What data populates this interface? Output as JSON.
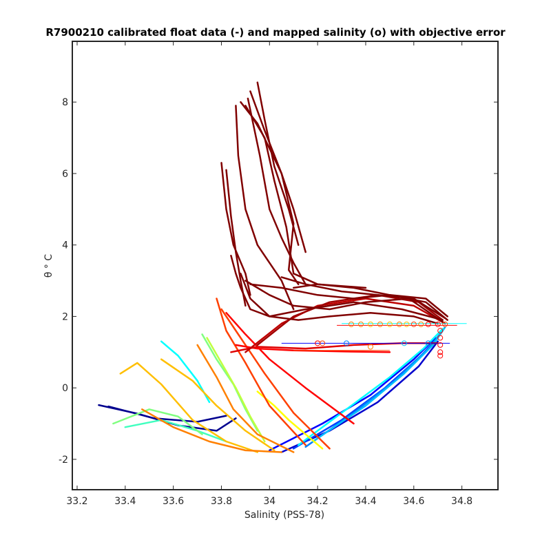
{
  "chart_data": {
    "type": "line",
    "title": "R7900210 calibrated float data (-) and mapped salinity (o) with objective error",
    "xlabel": "Salinity (PSS-78)",
    "ylabel": "θ ° C",
    "xlim": [
      33.18,
      34.95
    ],
    "ylim": [
      -2.85,
      9.7
    ],
    "x_ticks": [
      {
        "value": 33.2,
        "label": "33.2"
      },
      {
        "value": 33.4,
        "label": "33.4"
      },
      {
        "value": 33.6,
        "label": "33.6"
      },
      {
        "value": 33.8,
        "label": "33.8"
      },
      {
        "value": 34.0,
        "label": "34"
      },
      {
        "value": 34.2,
        "label": "34.2"
      },
      {
        "value": 34.4,
        "label": "34.4"
      },
      {
        "value": 34.6,
        "label": "34.6"
      },
      {
        "value": 34.8,
        "label": "34.8"
      }
    ],
    "y_ticks": [
      {
        "value": -2,
        "label": "-2"
      },
      {
        "value": 0,
        "label": "0"
      },
      {
        "value": 2,
        "label": "2"
      },
      {
        "value": 4,
        "label": "4"
      },
      {
        "value": 6,
        "label": "6"
      },
      {
        "value": 8,
        "label": "8"
      }
    ],
    "grid": false,
    "legend": "none",
    "colormap": [
      "#00008f",
      "#0000ff",
      "#0080ff",
      "#00ffff",
      "#80ff80",
      "#ffff00",
      "#ff8000",
      "#ff0000",
      "#800000"
    ],
    "series": [
      {
        "color": "#00008f",
        "x": [
          33.29,
          33.45,
          33.62,
          33.78,
          33.86
        ],
        "y": [
          -0.48,
          -0.72,
          -1.05,
          -1.2,
          -0.85
        ]
      },
      {
        "color": "#00008f",
        "x": [
          33.33,
          33.52,
          33.7,
          33.82
        ],
        "y": [
          -0.52,
          -0.85,
          -0.95,
          -0.78
        ]
      },
      {
        "color": "#0000cd",
        "x": [
          34.05,
          34.25,
          34.45,
          34.62,
          34.7
        ],
        "y": [
          -1.8,
          -1.2,
          -0.4,
          0.6,
          1.3
        ]
      },
      {
        "color": "#0000ff",
        "x": [
          34.0,
          34.22,
          34.42,
          34.6,
          34.69
        ],
        "y": [
          -1.75,
          -1.0,
          -0.2,
          0.8,
          1.4
        ]
      },
      {
        "color": "#0040ff",
        "x": [
          34.1,
          34.3,
          34.48,
          34.63,
          34.71
        ],
        "y": [
          -1.7,
          -0.9,
          0.0,
          0.9,
          1.5
        ]
      },
      {
        "color": "#0080ff",
        "x": [
          34.15,
          34.35,
          34.52,
          34.66,
          34.72
        ],
        "y": [
          -1.65,
          -0.7,
          0.2,
          1.1,
          1.6
        ]
      },
      {
        "color": "#00bfff",
        "x": [
          34.18,
          34.4,
          34.56,
          34.68,
          34.73
        ],
        "y": [
          -1.5,
          -0.5,
          0.4,
          1.2,
          1.7
        ]
      },
      {
        "color": "#00ffff",
        "x": [
          34.12,
          34.32,
          34.5,
          34.64,
          34.72
        ],
        "y": [
          -1.6,
          -0.6,
          0.3,
          1.1,
          1.65
        ]
      },
      {
        "color": "#00ffff",
        "x": [
          33.55,
          33.62,
          33.7,
          33.75
        ],
        "y": [
          1.3,
          0.9,
          0.2,
          -0.4
        ]
      },
      {
        "color": "#40ffbf",
        "x": [
          33.4,
          33.55,
          33.7,
          33.82
        ],
        "y": [
          -1.1,
          -0.9,
          -1.2,
          -1.5
        ]
      },
      {
        "color": "#80ff80",
        "x": [
          33.72,
          33.78,
          33.85,
          33.9,
          33.95
        ],
        "y": [
          1.5,
          0.8,
          0.1,
          -0.6,
          -1.2
        ]
      },
      {
        "color": "#80ff80",
        "x": [
          33.35,
          33.5,
          33.62,
          33.72
        ],
        "y": [
          -1.0,
          -0.6,
          -0.8,
          -1.3
        ]
      },
      {
        "color": "#bfff40",
        "x": [
          33.74,
          33.8,
          33.86,
          33.92,
          33.98
        ],
        "y": [
          1.4,
          0.7,
          0.0,
          -0.8,
          -1.5
        ]
      },
      {
        "color": "#ffff00",
        "x": [
          33.95,
          34.02,
          34.08,
          34.15,
          34.22
        ],
        "y": [
          -0.1,
          -0.5,
          -0.9,
          -1.3,
          -1.7
        ]
      },
      {
        "color": "#ffbf00",
        "x": [
          33.38,
          33.45,
          33.55,
          33.68,
          33.82,
          33.95
        ],
        "y": [
          0.4,
          0.7,
          0.1,
          -0.9,
          -1.5,
          -1.8
        ]
      },
      {
        "color": "#ffbf00",
        "x": [
          33.55,
          33.68,
          33.78,
          33.9,
          34.02
        ],
        "y": [
          0.8,
          0.2,
          -0.5,
          -1.2,
          -1.75
        ]
      },
      {
        "color": "#ff8000",
        "x": [
          33.47,
          33.6,
          33.75,
          33.9,
          34.05
        ],
        "y": [
          -0.6,
          -1.1,
          -1.5,
          -1.75,
          -1.8
        ]
      },
      {
        "color": "#ff8000",
        "x": [
          33.7,
          33.78,
          33.85,
          33.95,
          34.1
        ],
        "y": [
          1.2,
          0.3,
          -0.6,
          -1.3,
          -1.8
        ]
      },
      {
        "color": "#ff4000",
        "x": [
          33.78,
          33.82,
          33.9,
          34.0,
          34.15
        ],
        "y": [
          2.5,
          1.6,
          0.7,
          -0.5,
          -1.6
        ]
      },
      {
        "color": "#ff4000",
        "x": [
          33.8,
          33.88,
          33.98,
          34.1,
          34.25
        ],
        "y": [
          2.2,
          1.4,
          0.4,
          -0.7,
          -1.7
        ]
      },
      {
        "color": "#ff0000",
        "x": [
          33.82,
          33.9,
          34.0,
          34.15,
          34.35
        ],
        "y": [
          2.1,
          1.5,
          0.8,
          0.0,
          -1.0
        ]
      },
      {
        "color": "#ff0000",
        "x": [
          33.86,
          33.95,
          34.1,
          34.3,
          34.5
        ],
        "y": [
          1.2,
          1.1,
          1.05,
          1.02,
          1.0
        ]
      },
      {
        "color": "#e00000",
        "x": [
          33.84,
          33.95,
          34.15,
          34.35,
          34.55,
          34.7
        ],
        "y": [
          1.0,
          1.15,
          1.1,
          1.2,
          1.25,
          1.25
        ]
      },
      {
        "color": "#bf0000",
        "x": [
          33.9,
          34.05,
          34.2,
          34.4,
          34.6,
          34.73
        ],
        "y": [
          1.0,
          1.8,
          2.3,
          2.5,
          2.3,
          1.8
        ]
      },
      {
        "color": "#a00000",
        "x": [
          33.95,
          34.1,
          34.25,
          34.45,
          34.62,
          34.72
        ],
        "y": [
          1.2,
          2.0,
          2.4,
          2.6,
          2.4,
          1.9
        ]
      },
      {
        "color": "#800000",
        "x": [
          33.86,
          33.87,
          33.9,
          33.95,
          34.0,
          34.05,
          34.1
        ],
        "y": [
          7.9,
          6.5,
          5.0,
          4.0,
          3.5,
          3.0,
          2.2
        ]
      },
      {
        "color": "#800000",
        "x": [
          33.88,
          33.95,
          34.05,
          34.1,
          34.08,
          34.12
        ],
        "y": [
          8.0,
          7.4,
          6.0,
          4.6,
          3.3,
          2.9
        ]
      },
      {
        "color": "#800000",
        "x": [
          33.9,
          33.98,
          34.02,
          34.07,
          34.1,
          34.2,
          34.4
        ],
        "y": [
          7.9,
          7.0,
          5.8,
          4.5,
          3.2,
          2.9,
          2.8
        ]
      },
      {
        "color": "#800000",
        "x": [
          33.91,
          33.96,
          34.0,
          34.05,
          34.1,
          34.15
        ],
        "y": [
          8.1,
          6.5,
          5.0,
          4.2,
          3.5,
          2.9
        ]
      },
      {
        "color": "#800000",
        "x": [
          33.92,
          33.98,
          34.05,
          34.1,
          34.15
        ],
        "y": [
          8.3,
          7.2,
          6.0,
          5.0,
          3.8
        ]
      },
      {
        "color": "#800000",
        "x": [
          33.95,
          33.98,
          34.02,
          34.08,
          34.12
        ],
        "y": [
          8.55,
          7.5,
          6.2,
          5.0,
          4.0
        ]
      },
      {
        "color": "#800000",
        "x": [
          33.8,
          33.82,
          33.85,
          33.9,
          33.92
        ],
        "y": [
          6.3,
          5.0,
          4.0,
          3.2,
          2.6
        ]
      },
      {
        "color": "#800000",
        "x": [
          33.82,
          33.84,
          33.86,
          33.88,
          33.9
        ],
        "y": [
          6.1,
          4.8,
          3.8,
          3.0,
          2.3
        ]
      },
      {
        "color": "#800000",
        "x": [
          33.84,
          33.86,
          33.88,
          33.92,
          34.0,
          34.15,
          34.35,
          34.55,
          34.72
        ],
        "y": [
          3.7,
          3.2,
          2.8,
          2.2,
          2.0,
          2.2,
          2.4,
          2.2,
          1.9
        ]
      },
      {
        "color": "#800000",
        "x": [
          33.88,
          33.92,
          34.0,
          34.12,
          34.25,
          34.42,
          34.6,
          34.7
        ],
        "y": [
          3.2,
          2.5,
          2.0,
          1.9,
          2.0,
          2.1,
          2.0,
          1.8
        ]
      },
      {
        "color": "#800000",
        "x": [
          33.9,
          34.0,
          34.1,
          34.25,
          34.4,
          34.58,
          34.72
        ],
        "y": [
          3.0,
          2.6,
          2.3,
          2.2,
          2.4,
          2.5,
          1.85
        ]
      },
      {
        "color": "#800000",
        "x": [
          33.92,
          34.05,
          34.2,
          34.35,
          34.5,
          34.65,
          34.74
        ],
        "y": [
          2.9,
          2.8,
          2.6,
          2.5,
          2.6,
          2.4,
          1.9
        ]
      },
      {
        "color": "#800000",
        "x": [
          34.05,
          34.15,
          34.3,
          34.45,
          34.6,
          34.73
        ],
        "y": [
          3.1,
          2.9,
          2.7,
          2.6,
          2.5,
          1.95
        ]
      },
      {
        "color": "#800000",
        "x": [
          34.1,
          34.2,
          34.35,
          34.5,
          34.65,
          34.74
        ],
        "y": [
          2.8,
          2.9,
          2.8,
          2.6,
          2.5,
          2.0
        ]
      }
    ],
    "mapped_points": [
      {
        "color": "#ff8000",
        "x": 34.34,
        "y": 1.78
      },
      {
        "color": "#ff8000",
        "x": 34.38,
        "y": 1.78
      },
      {
        "color": "#ffbf00",
        "x": 34.42,
        "y": 1.78
      },
      {
        "color": "#ff8000",
        "x": 34.46,
        "y": 1.78
      },
      {
        "color": "#ffbf00",
        "x": 34.5,
        "y": 1.78
      },
      {
        "color": "#ff8000",
        "x": 34.54,
        "y": 1.78
      },
      {
        "color": "#ffbf00",
        "x": 34.57,
        "y": 1.78
      },
      {
        "color": "#ff4000",
        "x": 34.6,
        "y": 1.78
      },
      {
        "color": "#ff8000",
        "x": 34.63,
        "y": 1.78
      },
      {
        "color": "#ff0000",
        "x": 34.66,
        "y": 1.78
      },
      {
        "color": "#ff0000",
        "x": 34.7,
        "y": 1.78
      },
      {
        "color": "#ff4000",
        "x": 34.73,
        "y": 1.78
      },
      {
        "color": "#ff0000",
        "x": 34.2,
        "y": 1.25
      },
      {
        "color": "#ff4000",
        "x": 34.22,
        "y": 1.25
      },
      {
        "color": "#0080ff",
        "x": 34.32,
        "y": 1.25
      },
      {
        "color": "#00bfff",
        "x": 34.56,
        "y": 1.25
      },
      {
        "color": "#0080ff",
        "x": 34.66,
        "y": 1.25
      },
      {
        "color": "#ff8000",
        "x": 34.42,
        "y": 1.15
      },
      {
        "color": "#ff0000",
        "x": 34.71,
        "y": 1.6
      },
      {
        "color": "#ff0000",
        "x": 34.71,
        "y": 1.4
      },
      {
        "color": "#ff0000",
        "x": 34.71,
        "y": 1.2
      },
      {
        "color": "#ff0000",
        "x": 34.71,
        "y": 1.0
      },
      {
        "color": "#ff0000",
        "x": 34.71,
        "y": 0.9
      }
    ],
    "error_bars": [
      {
        "color": "#00ffff",
        "x1": 34.3,
        "x2": 34.82,
        "y": 1.8
      },
      {
        "color": "#ff0000",
        "x1": 34.28,
        "x2": 34.78,
        "y": 1.75
      },
      {
        "color": "#0000ff",
        "x1": 34.05,
        "x2": 34.75,
        "y": 1.25
      },
      {
        "color": "#ff4000",
        "x1": 34.1,
        "x2": 34.5,
        "y": 1.05
      }
    ]
  }
}
